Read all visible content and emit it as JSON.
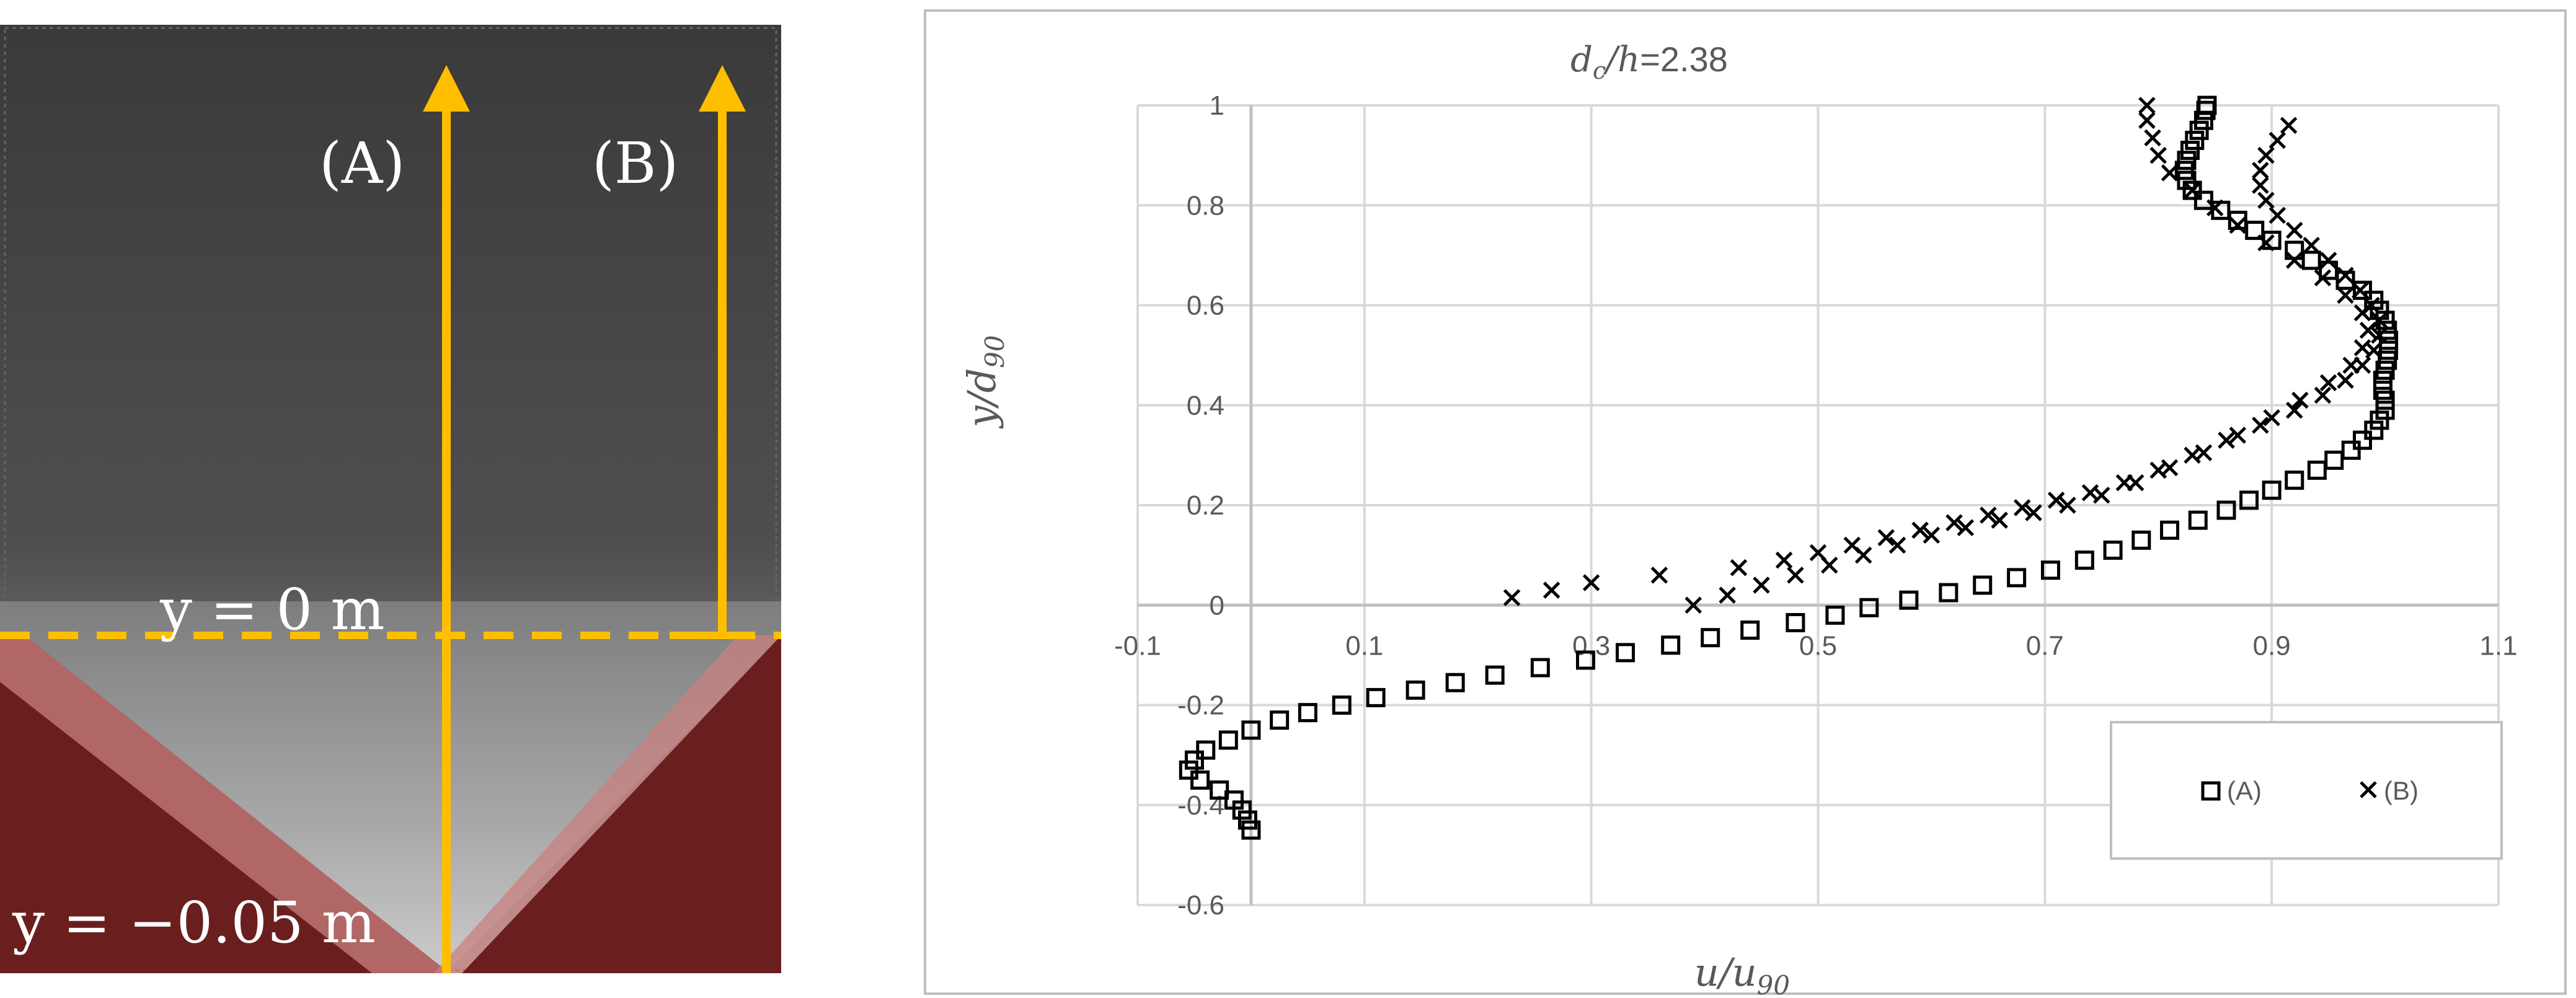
{
  "photo": {
    "line_a_label": "(A)",
    "line_b_label": "(B)",
    "surface_label": "y = 0 m",
    "bottom_label": "y = −0.05 m",
    "colors": {
      "arrow": "#FFBF00",
      "wall": "#6B1E1E",
      "dashed": "#FFBF00"
    }
  },
  "chart_data": {
    "type": "scatter",
    "title": "dc/h=2.38",
    "title_parts": {
      "var": "d",
      "sub": "c",
      "rest_var": "/h",
      "value": "=2.38"
    },
    "xlabel": "u/u90",
    "xlabel_parts": {
      "main": "u/u",
      "sub": "90"
    },
    "ylabel": "y/d90",
    "ylabel_parts": {
      "main": "y/d",
      "sub": "90"
    },
    "xlim": [
      -0.1,
      1.1
    ],
    "ylim": [
      -0.6,
      1.0
    ],
    "xticks": [
      -0.1,
      0.1,
      0.3,
      0.5,
      0.7,
      0.9,
      1.1
    ],
    "yticks": [
      -0.6,
      -0.4,
      -0.2,
      0,
      0.2,
      0.4,
      0.6,
      0.8,
      1
    ],
    "grid": true,
    "legend_position": "bottom-right",
    "series": [
      {
        "name": "(A)",
        "marker": "square",
        "points": [
          [
            0.0,
            -0.45
          ],
          [
            -0.003,
            -0.43
          ],
          [
            -0.008,
            -0.41
          ],
          [
            -0.015,
            -0.39
          ],
          [
            -0.028,
            -0.37
          ],
          [
            -0.045,
            -0.35
          ],
          [
            -0.055,
            -0.33
          ],
          [
            -0.05,
            -0.31
          ],
          [
            -0.04,
            -0.29
          ],
          [
            -0.02,
            -0.27
          ],
          [
            0.0,
            -0.25
          ],
          [
            0.025,
            -0.23
          ],
          [
            0.05,
            -0.215
          ],
          [
            0.08,
            -0.2
          ],
          [
            0.11,
            -0.185
          ],
          [
            0.145,
            -0.17
          ],
          [
            0.18,
            -0.155
          ],
          [
            0.215,
            -0.14
          ],
          [
            0.255,
            -0.125
          ],
          [
            0.295,
            -0.11
          ],
          [
            0.33,
            -0.095
          ],
          [
            0.37,
            -0.08
          ],
          [
            0.405,
            -0.065
          ],
          [
            0.44,
            -0.05
          ],
          [
            0.48,
            -0.035
          ],
          [
            0.515,
            -0.02
          ],
          [
            0.545,
            -0.005
          ],
          [
            0.58,
            0.01
          ],
          [
            0.615,
            0.025
          ],
          [
            0.645,
            0.04
          ],
          [
            0.675,
            0.055
          ],
          [
            0.705,
            0.07
          ],
          [
            0.735,
            0.09
          ],
          [
            0.76,
            0.11
          ],
          [
            0.785,
            0.13
          ],
          [
            0.81,
            0.15
          ],
          [
            0.835,
            0.17
          ],
          [
            0.86,
            0.19
          ],
          [
            0.88,
            0.21
          ],
          [
            0.9,
            0.23
          ],
          [
            0.92,
            0.25
          ],
          [
            0.94,
            0.27
          ],
          [
            0.955,
            0.29
          ],
          [
            0.97,
            0.31
          ],
          [
            0.98,
            0.33
          ],
          [
            0.99,
            0.35
          ],
          [
            0.995,
            0.37
          ],
          [
            1.0,
            0.39
          ],
          [
            1.0,
            0.41
          ],
          [
            0.998,
            0.43
          ],
          [
            0.998,
            0.45
          ],
          [
            1.0,
            0.47
          ],
          [
            1.002,
            0.49
          ],
          [
            1.003,
            0.51
          ],
          [
            1.003,
            0.53
          ],
          [
            1.002,
            0.55
          ],
          [
            1.0,
            0.57
          ],
          [
            0.995,
            0.59
          ],
          [
            0.99,
            0.61
          ],
          [
            0.98,
            0.63
          ],
          [
            0.965,
            0.65
          ],
          [
            0.95,
            0.67
          ],
          [
            0.935,
            0.69
          ],
          [
            0.92,
            0.71
          ],
          [
            0.9,
            0.73
          ],
          [
            0.885,
            0.75
          ],
          [
            0.87,
            0.77
          ],
          [
            0.855,
            0.79
          ],
          [
            0.84,
            0.81
          ],
          [
            0.83,
            0.83
          ],
          [
            0.825,
            0.85
          ],
          [
            0.823,
            0.87
          ],
          [
            0.825,
            0.89
          ],
          [
            0.828,
            0.91
          ],
          [
            0.832,
            0.93
          ],
          [
            0.836,
            0.95
          ],
          [
            0.84,
            0.97
          ],
          [
            0.842,
            0.99
          ],
          [
            0.843,
            1.0
          ]
        ]
      },
      {
        "name": "(B)",
        "marker": "cross",
        "points": [
          [
            0.23,
            0.015
          ],
          [
            0.265,
            0.03
          ],
          [
            0.3,
            0.045
          ],
          [
            0.36,
            0.06
          ],
          [
            0.43,
            0.075
          ],
          [
            0.47,
            0.09
          ],
          [
            0.5,
            0.105
          ],
          [
            0.53,
            0.12
          ],
          [
            0.56,
            0.135
          ],
          [
            0.59,
            0.15
          ],
          [
            0.62,
            0.165
          ],
          [
            0.65,
            0.18
          ],
          [
            0.68,
            0.195
          ],
          [
            0.71,
            0.21
          ],
          [
            0.74,
            0.225
          ],
          [
            0.77,
            0.245
          ],
          [
            0.8,
            0.27
          ],
          [
            0.83,
            0.3
          ],
          [
            0.86,
            0.33
          ],
          [
            0.89,
            0.36
          ],
          [
            0.92,
            0.39
          ],
          [
            0.945,
            0.42
          ],
          [
            0.965,
            0.45
          ],
          [
            0.98,
            0.48
          ],
          [
            0.99,
            0.51
          ],
          [
            0.995,
            0.54
          ],
          [
            0.995,
            0.57
          ],
          [
            0.988,
            0.6
          ],
          [
            0.978,
            0.63
          ],
          [
            0.965,
            0.66
          ],
          [
            0.95,
            0.69
          ],
          [
            0.935,
            0.72
          ],
          [
            0.92,
            0.75
          ],
          [
            0.905,
            0.78
          ],
          [
            0.895,
            0.81
          ],
          [
            0.89,
            0.84
          ],
          [
            0.89,
            0.87
          ],
          [
            0.895,
            0.9
          ],
          [
            0.905,
            0.93
          ],
          [
            0.915,
            0.96
          ],
          [
            0.39,
            0.0
          ],
          [
            0.42,
            0.02
          ],
          [
            0.45,
            0.04
          ],
          [
            0.48,
            0.06
          ],
          [
            0.51,
            0.08
          ],
          [
            0.54,
            0.1
          ],
          [
            0.57,
            0.12
          ],
          [
            0.6,
            0.14
          ],
          [
            0.63,
            0.155
          ],
          [
            0.66,
            0.17
          ],
          [
            0.69,
            0.185
          ],
          [
            0.72,
            0.2
          ],
          [
            0.75,
            0.22
          ],
          [
            0.78,
            0.245
          ],
          [
            0.81,
            0.275
          ],
          [
            0.84,
            0.305
          ],
          [
            0.87,
            0.34
          ],
          [
            0.9,
            0.375
          ],
          [
            0.925,
            0.41
          ],
          [
            0.95,
            0.445
          ],
          [
            0.97,
            0.48
          ],
          [
            0.98,
            0.515
          ],
          [
            0.985,
            0.55
          ],
          [
            0.98,
            0.585
          ],
          [
            0.965,
            0.62
          ],
          [
            0.945,
            0.655
          ],
          [
            0.92,
            0.69
          ],
          [
            0.895,
            0.725
          ],
          [
            0.87,
            0.76
          ],
          [
            0.85,
            0.795
          ],
          [
            0.83,
            0.83
          ],
          [
            0.81,
            0.865
          ],
          [
            0.8,
            0.9
          ],
          [
            0.795,
            0.935
          ],
          [
            0.79,
            0.97
          ],
          [
            0.79,
            1.0
          ]
        ]
      }
    ]
  }
}
